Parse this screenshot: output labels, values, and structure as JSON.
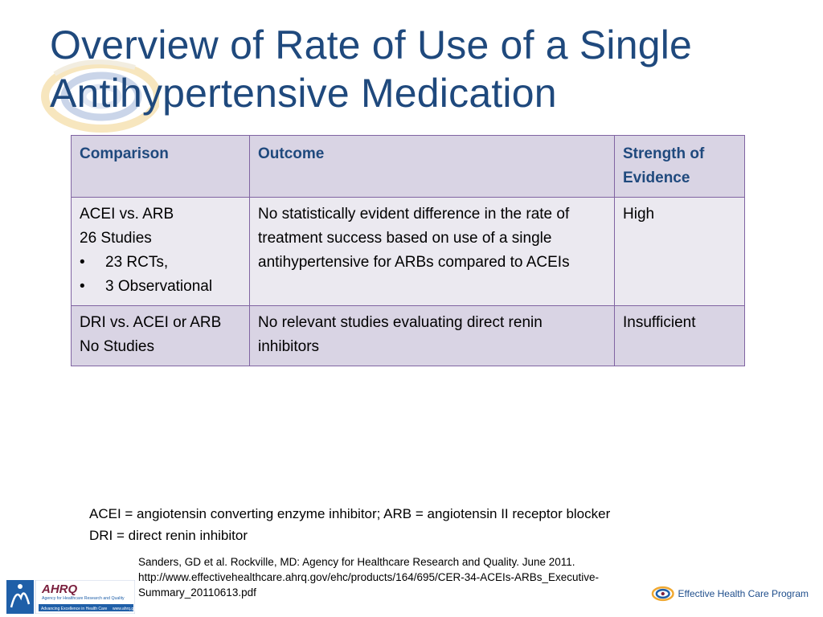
{
  "slide": {
    "title": "Overview of Rate of Use of a Single Antihypertensive Medication"
  },
  "table": {
    "headers": [
      "Comparison",
      "Outcome",
      "Strength of Evidence"
    ],
    "rows": [
      {
        "comparison_lines": [
          "ACEI vs. ARB",
          "26 Studies"
        ],
        "comparison_bullets": [
          "23 RCTs,",
          "3 Observational"
        ],
        "outcome": "No statistically evident difference in the rate of treatment success based on use of a single antihypertensive for ARBs compared to ACEIs",
        "strength": "High"
      },
      {
        "comparison_lines": [
          "DRI vs. ACEI or ARB",
          "No Studies"
        ],
        "comparison_bullets": [],
        "outcome": "No relevant studies evaluating direct renin inhibitors",
        "strength": "Insufficient"
      }
    ]
  },
  "abbreviations": [
    "ACEI = angiotensin converting enzyme inhibitor; ARB = angiotensin II receptor blocker",
    "DRI = direct renin inhibitor"
  ],
  "citation": {
    "line1": "Sanders, GD et al. Rockville, MD: Agency for Healthcare Research and Quality. June 2011.",
    "line2": "http://www.effectivehealthcare.ahrq.gov/ehc/products/164/695/CER-34-ACEIs-ARBs_Executive-",
    "line3": "Summary_20110613.pdf"
  },
  "logos": {
    "ahrq_name": "AHRQ",
    "ahrq_sub": "Agency for Healthcare Research and Quality",
    "ahrq_tagline": "Advancing Excellence in Health Care",
    "ahrq_url": "www.ahrq.gov",
    "ehc_name": "Effective Health Care Program"
  },
  "colors": {
    "title": "#1f497d",
    "table_border": "#8064a2",
    "header_fill": "#d9d4e4",
    "row_fill_light": "#ebe9f0"
  }
}
